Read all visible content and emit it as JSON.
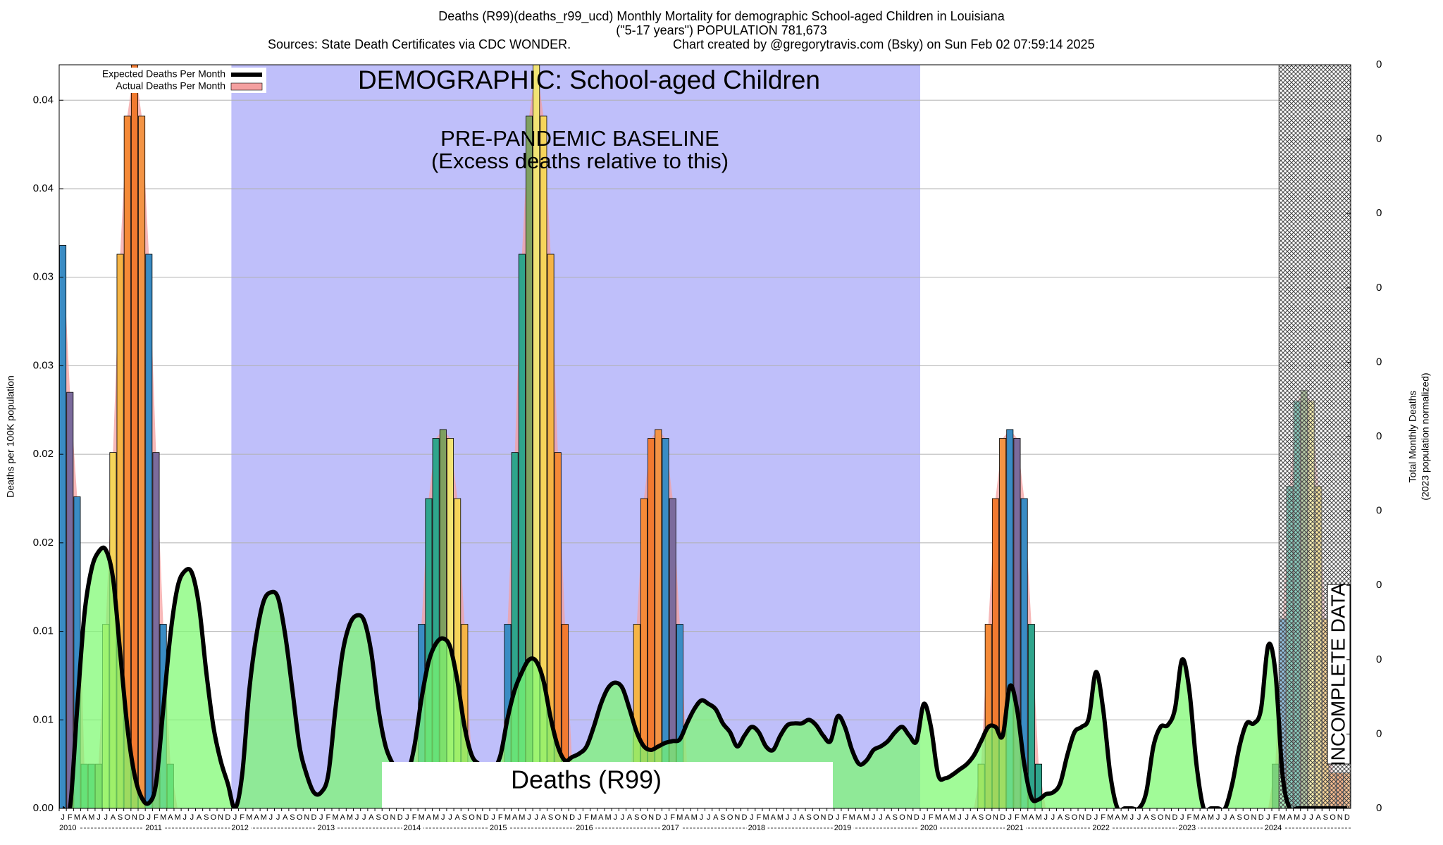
{
  "chart_data": {
    "type": "bar",
    "title": "Deaths (R99)(deaths_r99_ucd) Monthly Mortality for demographic School-aged Children in Louisiana",
    "subtitle": "(\"5-17 years\") POPULATION 781,673",
    "sources": "Sources: State Death Certificates via CDC WONDER.",
    "credit": "Chart created by @gregorytravis.com (Bsky) on Sun Feb 02 07:59:14 2025",
    "ylabel": "Deaths per 100K population",
    "y2label": [
      "Total Monthly Deaths",
      "(2023 population normalized)"
    ],
    "annotations": {
      "demographic": "DEMOGRAPHIC: School-aged Children",
      "box": "Deaths (R99)"
    },
    "regions": [
      {
        "kind": "solid",
        "color": "#bfbffa",
        "start": 24,
        "end": 120,
        "label": "PRE-PANDEMIC BASELINE",
        "note": "(Excess deaths relative to this)"
      },
      {
        "kind": "crosshatch",
        "color": "#555555",
        "start": 170,
        "end": 180,
        "label": "INCOMPLETE DATA"
      }
    ],
    "years": [
      "2010",
      "2011",
      "2012",
      "2013",
      "2014",
      "2015",
      "2016",
      "2017",
      "2018",
      "2019",
      "2020",
      "2021",
      "2022",
      "2023",
      "2024"
    ],
    "categories": [
      "J",
      "F",
      "M",
      "A",
      "M",
      "J",
      "J",
      "A",
      "S",
      "O",
      "N",
      "D",
      "J",
      "F",
      "M",
      "A",
      "M",
      "J",
      "J",
      "A",
      "S",
      "O",
      "N",
      "D",
      "J",
      "F",
      "M",
      "A",
      "M",
      "J",
      "J",
      "A",
      "S",
      "O",
      "N",
      "D",
      "J",
      "F",
      "M",
      "A",
      "M",
      "J",
      "J",
      "A",
      "S",
      "O",
      "N",
      "D",
      "J",
      "F",
      "M",
      "A",
      "M",
      "J",
      "J",
      "A",
      "S",
      "O",
      "N",
      "D",
      "J",
      "F",
      "M",
      "A",
      "M",
      "J",
      "J",
      "A",
      "S",
      "O",
      "N",
      "D",
      "J",
      "F",
      "M",
      "A",
      "M",
      "J",
      "J",
      "A",
      "S",
      "O",
      "N",
      "D",
      "J",
      "F",
      "M",
      "A",
      "M",
      "J",
      "J",
      "A",
      "S",
      "O",
      "N",
      "D",
      "J",
      "F",
      "M",
      "A",
      "M",
      "J",
      "J",
      "A",
      "S",
      "O",
      "N",
      "D",
      "J",
      "F",
      "M",
      "A",
      "M",
      "J",
      "J",
      "A",
      "S",
      "O",
      "N",
      "D",
      "J",
      "F",
      "M",
      "A",
      "M",
      "J",
      "J",
      "A",
      "S",
      "O",
      "N",
      "D",
      "J",
      "F",
      "M",
      "A",
      "M",
      "J",
      "J",
      "A",
      "S",
      "O",
      "N",
      "D",
      "J",
      "F",
      "M",
      "A",
      "M",
      "J",
      "J",
      "A",
      "S",
      "O",
      "N",
      "D",
      "J",
      "F",
      "M",
      "A",
      "M",
      "J",
      "J",
      "A",
      "S",
      "O",
      "N",
      "D",
      "J",
      "F",
      "M",
      "A",
      "M",
      "J",
      "J",
      "A",
      "S",
      "O",
      "N",
      "D"
    ],
    "series": [
      {
        "name": "Expected Deaths Per Month",
        "type": "line",
        "color": "#000000",
        "fill": "#7dfa70",
        "values": [
          0,
          0,
          0.0056,
          0.0109,
          0.0135,
          0.0145,
          0.0146,
          0.013,
          0.0088,
          0.0046,
          0.0019,
          0.0006,
          0.0003,
          0.0014,
          0.0056,
          0.0098,
          0.0125,
          0.0134,
          0.0133,
          0.0114,
          0.0077,
          0.0046,
          0.0027,
          0.0014,
          0,
          0.0019,
          0.0067,
          0.0098,
          0.0117,
          0.0122,
          0.0119,
          0.0098,
          0.0067,
          0.0035,
          0.0019,
          0.0009,
          0.0009,
          0.0019,
          0.0056,
          0.0088,
          0.0104,
          0.0109,
          0.0106,
          0.0088,
          0.0056,
          0.0035,
          0.0025,
          0.0017,
          0.0019,
          0.0035,
          0.0062,
          0.0083,
          0.0093,
          0.0096,
          0.0091,
          0.0072,
          0.0046,
          0.003,
          0.0025,
          0.0022,
          0.0022,
          0.003,
          0.0051,
          0.0067,
          0.0077,
          0.0084,
          0.0083,
          0.0072,
          0.0051,
          0.0035,
          0.0027,
          0.0029,
          0.0031,
          0.0035,
          0.0046,
          0.0059,
          0.0068,
          0.0071,
          0.0068,
          0.0056,
          0.0043,
          0.0035,
          0.0033,
          0.0035,
          0.0037,
          0.0038,
          0.0039,
          0.0048,
          0.0056,
          0.0061,
          0.0059,
          0.0056,
          0.0048,
          0.0043,
          0.0035,
          0.0041,
          0.0046,
          0.0043,
          0.0035,
          0.0033,
          0.0041,
          0.0047,
          0.0048,
          0.0048,
          0.005,
          0.0047,
          0.0041,
          0.0038,
          0.0052,
          0.0046,
          0.0033,
          0.0025,
          0.0027,
          0.0033,
          0.0035,
          0.0038,
          0.0043,
          0.0046,
          0.0041,
          0.0038,
          0.0059,
          0.0046,
          0.0019,
          0.0017,
          0.0019,
          0.0022,
          0.0025,
          0.003,
          0.0038,
          0.0046,
          0.0046,
          0.0041,
          0.0069,
          0.0056,
          0.0025,
          0.0006,
          0.0005,
          0.0008,
          0.0009,
          0.0014,
          0.003,
          0.0043,
          0.0046,
          0.0051,
          0.0077,
          0.0056,
          0.0019,
          0,
          0,
          0,
          0,
          0.0009,
          0.0035,
          0.0046,
          0.0047,
          0.0056,
          0.0084,
          0.0067,
          0.0025,
          0,
          0,
          0,
          0,
          0.0014,
          0.0035,
          0.0048,
          0.0048,
          0.0056,
          0.0092,
          0.0077,
          0.0019,
          0,
          0,
          0,
          0,
          0,
          0,
          0,
          0,
          0
        ]
      },
      {
        "name": "Actual Deaths Per Month",
        "type": "bar",
        "color": "#f4a0a0",
        "month_colors": [
          "#3a8cc4",
          "#7b6b9c",
          "#3a8cc4",
          "#2fa58c",
          "#2fa58c",
          "#7fa060",
          "#f2e474",
          "#f6d45a",
          "#f5b445",
          "#f58a38",
          "#f27a30",
          "#f39445"
        ],
        "values": [
          0.0318,
          0.0235,
          0.0176,
          0.0025,
          0.0025,
          0.0025,
          0.0104,
          0.0201,
          0.0313,
          0.0391,
          0.042,
          0.0391,
          0.0313,
          0.0201,
          0.0104,
          0.0025,
          0,
          0,
          0,
          0,
          0,
          0,
          0,
          0,
          0,
          0,
          0,
          0,
          0,
          0,
          0,
          0,
          0,
          0,
          0,
          0,
          0,
          0,
          0,
          0,
          0,
          0,
          0,
          0,
          0,
          0,
          0,
          0,
          0,
          0,
          0.0104,
          0.0175,
          0.0209,
          0.0214,
          0.0209,
          0.0175,
          0.0104,
          0.0025,
          0,
          0,
          0,
          0,
          0.0104,
          0.0201,
          0.0313,
          0.0391,
          0.042,
          0.0391,
          0.0313,
          0.0201,
          0.0104,
          0.0025,
          0,
          0,
          0,
          0,
          0,
          0,
          0,
          0,
          0.0104,
          0.0175,
          0.0209,
          0.0214,
          0.0209,
          0.0175,
          0.0104,
          0.0025,
          0,
          0,
          0,
          0,
          0,
          0,
          0,
          0,
          0,
          0,
          0,
          0,
          0,
          0,
          0,
          0,
          0,
          0,
          0,
          0,
          0,
          0,
          0,
          0,
          0,
          0,
          0,
          0,
          0,
          0,
          0,
          0,
          0,
          0,
          0,
          0,
          0,
          0,
          0,
          0,
          0.0025,
          0.0104,
          0.0175,
          0.0209,
          0.0214,
          0.0209,
          0.0175,
          0.0104,
          0.0025,
          0,
          0,
          0,
          0,
          0,
          0,
          0,
          0,
          0,
          0,
          0,
          0,
          0,
          0,
          0,
          0,
          0,
          0,
          0,
          0,
          0,
          0,
          0,
          0,
          0,
          0,
          0,
          0,
          0,
          0,
          0,
          0,
          0.0025,
          0.0107,
          0.0182,
          0.023,
          0.0236,
          0.023,
          0.0182,
          0.0107,
          0.002,
          0.002,
          0.002
        ]
      }
    ],
    "ylim": [
      0,
      0.042
    ],
    "yticks": [
      {
        "value": 0,
        "label": "0.00"
      },
      {
        "value": 0.005,
        "label": "0.01"
      },
      {
        "value": 0.01,
        "label": "0.01"
      },
      {
        "value": 0.015,
        "label": "0.02"
      },
      {
        "value": 0.02,
        "label": "0.02"
      },
      {
        "value": 0.025,
        "label": "0.03"
      },
      {
        "value": 0.03,
        "label": "0.03"
      },
      {
        "value": 0.035,
        "label": "0.04"
      },
      {
        "value": 0.04,
        "label": "0.04"
      }
    ],
    "y2lim": [
      0,
      0.33
    ],
    "y2ticks": [
      {
        "value": 0,
        "label": "0"
      },
      {
        "value": 0.033,
        "label": "0"
      },
      {
        "value": 0.066,
        "label": "0"
      },
      {
        "value": 0.099,
        "label": "0"
      },
      {
        "value": 0.132,
        "label": "0"
      },
      {
        "value": 0.165,
        "label": "0"
      },
      {
        "value": 0.198,
        "label": "0"
      },
      {
        "value": 0.231,
        "label": "0"
      },
      {
        "value": 0.264,
        "label": "0"
      },
      {
        "value": 0.297,
        "label": "0"
      },
      {
        "value": 0.33,
        "label": "0"
      }
    ],
    "grid": true,
    "legend": "top-left"
  }
}
